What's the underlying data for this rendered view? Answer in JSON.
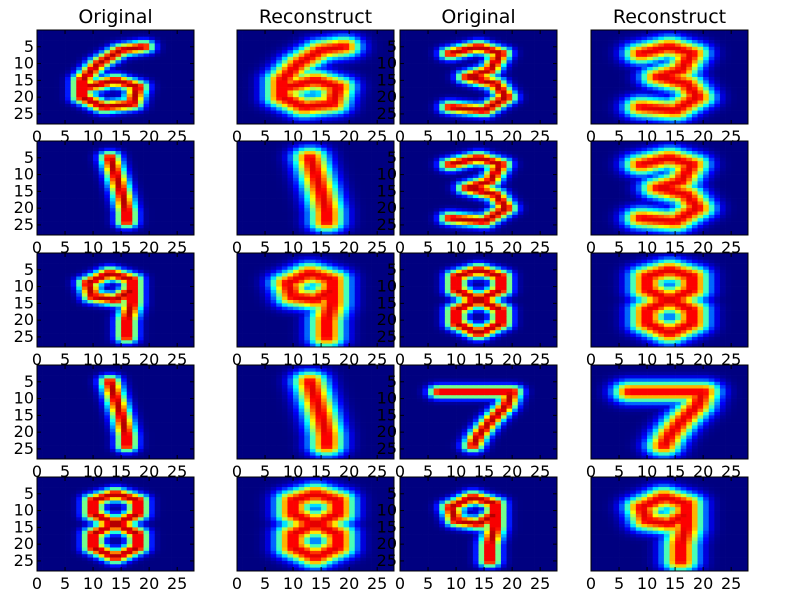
{
  "chart_data": {
    "type": "heatmap",
    "layout": {
      "rows": 5,
      "cols": 4
    },
    "colormap": "jet",
    "image_size": [
      28,
      28
    ],
    "column_titles": [
      "Original",
      "Reconstruct",
      "Original",
      "Reconstruct"
    ],
    "x_ticks": [
      0,
      5,
      10,
      15,
      20,
      25
    ],
    "y_ticks": [
      5,
      10,
      15,
      20,
      25
    ],
    "xlim": [
      0,
      28
    ],
    "ylim": [
      28,
      0
    ],
    "grid": false,
    "digits": [
      [
        6,
        6,
        3,
        3
      ],
      [
        1,
        1,
        3,
        3
      ],
      [
        9,
        9,
        8,
        8
      ],
      [
        1,
        1,
        7,
        7
      ],
      [
        8,
        8,
        9,
        9
      ]
    ]
  }
}
